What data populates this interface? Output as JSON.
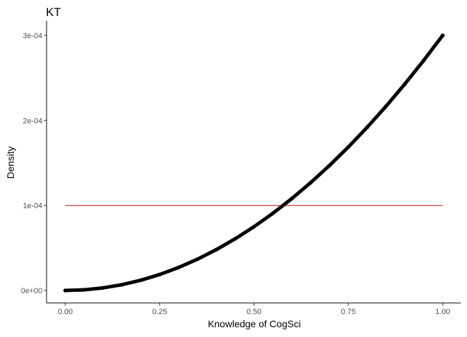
{
  "chart_data": {
    "type": "line",
    "title": "KT",
    "xlabel": "Knowledge of CogSci",
    "ylabel": "Density",
    "xlim": [
      0,
      1
    ],
    "ylim": [
      0,
      0.0003
    ],
    "x_ticks": [
      0,
      0.25,
      0.5,
      0.75,
      1.0
    ],
    "x_tick_labels": [
      "0.00",
      "0.25",
      "0.50",
      "0.75",
      "1.00"
    ],
    "y_ticks": [
      0,
      0.0001,
      0.0002,
      0.0003
    ],
    "y_tick_labels": [
      "0e+00",
      "1e-04",
      "2e-04",
      "3e-04"
    ],
    "grid": false,
    "legend": "none",
    "series": [
      {
        "style": "thick-points",
        "color": "#000000",
        "x": [
          0.0,
          0.05,
          0.1,
          0.15,
          0.2,
          0.25,
          0.3,
          0.35,
          0.4,
          0.45,
          0.5,
          0.55,
          0.6,
          0.65,
          0.7,
          0.75,
          0.8,
          0.85,
          0.9,
          0.95,
          1.0
        ],
        "y": [
          0.0,
          7.5e-07,
          3e-06,
          6.75e-06,
          1.2e-05,
          1.875e-05,
          2.7e-05,
          3.675e-05,
          4.8e-05,
          6.075e-05,
          7.5e-05,
          9.075e-05,
          0.000108,
          0.00012675,
          0.000147,
          0.00016875,
          0.000192,
          0.00021675,
          0.000243,
          0.00027075,
          0.0003
        ]
      },
      {
        "style": "line",
        "color": "#cc2222",
        "x": [
          0.0,
          1.0
        ],
        "y": [
          0.0001,
          0.0001
        ]
      }
    ]
  }
}
